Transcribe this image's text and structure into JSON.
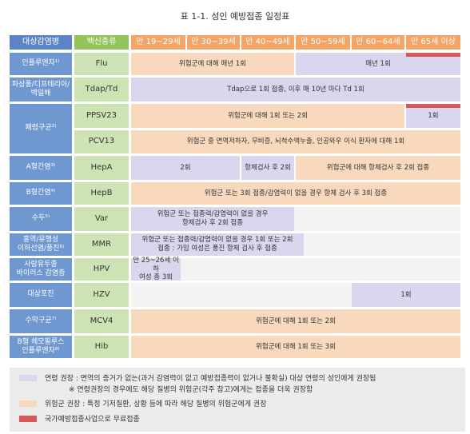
{
  "title": "표 1-1. 성인 예방접종 일정표",
  "headers": {
    "disease": "대상감염병",
    "vaccine": "백신종류",
    "ages": [
      "만 19~29세",
      "만 30~39세",
      "만 40~49세",
      "만 50~59세",
      "만 60~64세",
      "만 65세 이상"
    ]
  },
  "rows": [
    {
      "disease": "인플루엔자¹⁾",
      "vaccine": "Flu",
      "cells": [
        "위험군에 대해 매년 1회",
        "매년 1회"
      ]
    },
    {
      "disease": "파상풍/디프테리아/백일해",
      "vaccine": "Tdap/Td",
      "cells": [
        "Tdap으로 1회 접종, 이후 매 10년 마다 Td 1회"
      ]
    },
    {
      "disease": "폐렴구균²⁾",
      "vaccine": "PPSV23",
      "cells": [
        "위험군에 대해 1회 또는 2회",
        "1회"
      ]
    },
    {
      "disease": "",
      "vaccine": "PCV13",
      "cells": [
        "위험군 중 면역저하자, 무비증, 뇌척수액누출, 인공와우 이식 환자에 대해 1회"
      ]
    },
    {
      "disease": "A형간염³⁾",
      "vaccine": "HepA",
      "cells": [
        "2회",
        "항체검사 후 2회",
        "위험군에 대해 항체검사 후 2회 접종"
      ]
    },
    {
      "disease": "B형간염⁴⁾",
      "vaccine": "HepB",
      "cells": [
        "위험군 또는 3회 접종/감염력이 없을 경우 항체 검사 후 3회 접종"
      ]
    },
    {
      "disease": "수두⁵⁾",
      "vaccine": "Var",
      "cells": [
        "위험군 또는 접종력/감염력이 없을 경우\n항체검사 후 2회 접종"
      ]
    },
    {
      "disease": "홍역/유행성\n이하선염/풍진⁶⁾",
      "vaccine": "MMR",
      "cells": [
        "위험군 또는 접종력/감염력이 없을 경우 1회 또는 2회\n접종 : 가임 여성은 풍진 항체 검사 후 접종"
      ]
    },
    {
      "disease": "사람유두종\n바이러스 감염증",
      "vaccine": "HPV",
      "cells": [
        "만 25~26세 이하\n여성 총 3회"
      ]
    },
    {
      "disease": "대상포진",
      "vaccine": "HZV",
      "cells": [
        "1회"
      ]
    },
    {
      "disease": "수막구균⁷⁾",
      "vaccine": "MCV4",
      "cells": [
        "위험군에 대해 1회 또는 2회"
      ]
    },
    {
      "disease": "B형 헤모필루스\n인플루엔자⁸⁾",
      "vaccine": "Hib",
      "cells": [
        "위험군에 대해 1회 또는 3회"
      ]
    }
  ],
  "legend": {
    "lavender_line1": "연령 권장 : 면역의 증거가 없는(과거 감염력이 없고 예방접종력이 없거나 불확실) 대상 연령의 성인에게 권장됨",
    "lavender_line2": "※ 연령권장의 경우에도 해당 질병의 위험군(각주 참고)에게는 접종을 더욱 권장함",
    "peach": "위험군 권장 : 특정 기저질환, 상황 등에 따라 해당 질병의 위험군에게 권장",
    "red": "국가예방접종사업으로 무료접종"
  },
  "colors": {
    "header_blue": "#5b84c6",
    "header_green": "#93c35a",
    "header_age": "#f2a566",
    "age_recommended": "#d9d6ee",
    "risk_recommended": "#f8d9bd",
    "free_vaccination": "#d55a57"
  }
}
